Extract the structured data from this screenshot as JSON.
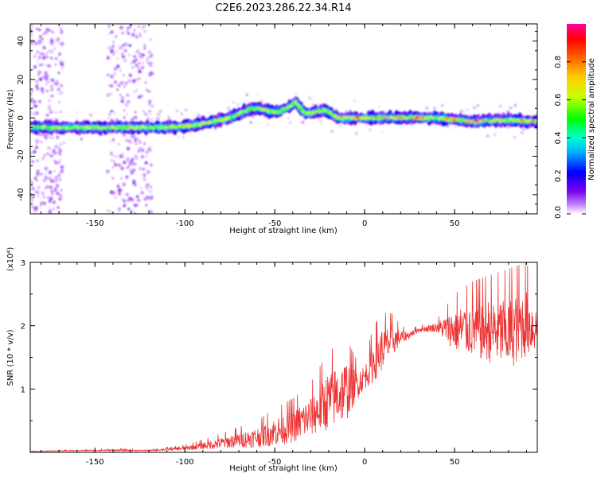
{
  "title": "C2E6.2023.286.22.34.R14",
  "chart_data": [
    {
      "type": "heatmap",
      "xlabel": "Height of straight line (km)",
      "ylabel": "Frequency (Hz)",
      "xlim": [
        -186,
        96
      ],
      "ylim": [
        -50,
        49
      ],
      "xticks": [
        -150,
        -100,
        -50,
        0,
        50
      ],
      "xtick_labels": [
        "-150",
        "-100",
        "-50",
        "0",
        "50"
      ],
      "yticks": [
        -40,
        -20,
        0,
        20,
        40
      ],
      "ytick_labels": [
        "-40",
        "-20",
        "0",
        "20",
        "40"
      ],
      "colorbar": {
        "label": "Normalized spectral amplitude",
        "range": [
          0,
          1
        ],
        "ticks": [
          0,
          0.2,
          0.4,
          0.6,
          0.8
        ],
        "tick_labels": [
          "0.0",
          "0.2",
          "0.4",
          "0.6",
          "0.8"
        ]
      },
      "ridge": {
        "x": [
          -186,
          -160,
          -130,
          -110,
          -95,
          -85,
          -75,
          -68,
          -62,
          -55,
          -48,
          -42,
          -38,
          -33,
          -28,
          -22,
          -15,
          0,
          20,
          40,
          60,
          80,
          96
        ],
        "frequency": [
          -5,
          -5,
          -5,
          -5,
          -4,
          -2,
          0,
          3,
          5,
          4,
          3,
          6,
          8,
          2,
          3,
          4,
          0,
          0,
          0,
          0,
          -2,
          -1,
          -2
        ]
      },
      "noise_bands_x": [
        [
          -186,
          -168
        ],
        [
          -143,
          -118
        ]
      ]
    },
    {
      "type": "line",
      "xlabel": "Height of straight line (km)",
      "ylabel": "SNR (10 * v/v)",
      "y_scale_label": "(x10⁴)",
      "xlim": [
        -186,
        96
      ],
      "ylim": [
        0,
        3
      ],
      "xticks": [
        -150,
        -100,
        -50,
        0,
        50
      ],
      "xtick_labels": [
        "-150",
        "-100",
        "-50",
        "0",
        "50"
      ],
      "yticks": [
        1,
        2,
        3
      ],
      "ytick_labels": [
        "1",
        "2",
        "3"
      ],
      "color": "#ee3333",
      "envelope": {
        "x": [
          -186,
          -160,
          -140,
          -120,
          -110,
          -100,
          -90,
          -80,
          -70,
          -60,
          -50,
          -40,
          -30,
          -20,
          -10,
          -5,
          0,
          5,
          10,
          15,
          20,
          25,
          30,
          40,
          50,
          60,
          70,
          80,
          90,
          96
        ],
        "lower": [
          0.01,
          0.02,
          0.02,
          0.02,
          0.03,
          0.03,
          0.05,
          0.05,
          0.07,
          0.08,
          0.1,
          0.15,
          0.25,
          0.35,
          0.5,
          0.8,
          1.0,
          1.1,
          1.3,
          1.5,
          1.7,
          1.8,
          1.9,
          1.9,
          1.6,
          1.5,
          1.4,
          1.3,
          1.5,
          1.6
        ],
        "upper": [
          0.02,
          0.04,
          0.06,
          0.04,
          0.08,
          0.12,
          0.2,
          0.3,
          0.4,
          0.5,
          0.7,
          0.85,
          1.1,
          1.6,
          1.8,
          1.5,
          1.5,
          2.0,
          2.2,
          2.2,
          2.0,
          1.95,
          2.0,
          2.1,
          2.5,
          2.7,
          2.8,
          2.9,
          3.0,
          2.5
        ]
      }
    }
  ]
}
